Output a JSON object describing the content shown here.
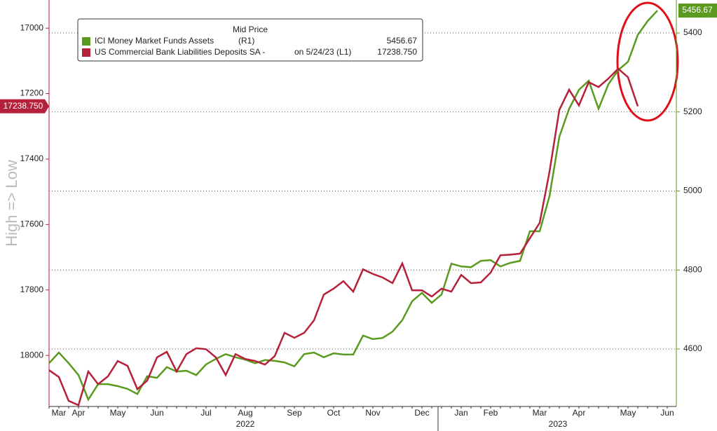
{
  "chart_data": {
    "type": "line",
    "y_label": "High => Low",
    "legend_title": "Mid Price",
    "categories": [
      null,
      "Mar",
      null,
      "Apr",
      null,
      null,
      null,
      "May",
      null,
      null,
      null,
      "Jun",
      null,
      null,
      null,
      null,
      "Jul",
      null,
      null,
      null,
      "Aug",
      null,
      null,
      null,
      null,
      "Sep",
      null,
      null,
      null,
      "Oct",
      null,
      null,
      null,
      "Nov",
      null,
      null,
      null,
      null,
      "Dec",
      null,
      null,
      null,
      "Jan",
      null,
      null,
      "Feb",
      null,
      null,
      null,
      null,
      "Mar",
      null,
      null,
      null,
      "Apr",
      null,
      null,
      null,
      null,
      "May",
      null,
      null,
      null,
      "Jun"
    ],
    "year_labels": [
      "2022",
      "2023"
    ],
    "ylim": [
      16914,
      18156
    ],
    "y_inverted": true,
    "yticks": [
      17000,
      17200,
      17400,
      17600,
      17800,
      18000
    ],
    "y2lim": [
      4454.5,
      5483.4
    ],
    "y2ticks": [
      4600,
      4800,
      5000,
      5200,
      5400
    ],
    "grid": true,
    "series": [
      {
        "name": "ICI Money Market Funds Assets",
        "legend_note": "(R1)",
        "axis": "y2",
        "color": "#5a9a1e",
        "values": [
          4564,
          4591,
          4564,
          4534,
          4472,
          4511,
          4511,
          4506,
          4499,
          4486,
          4531,
          4527,
          4554,
          4543,
          4545,
          4534,
          4561,
          4575,
          4587,
          4579,
          4573,
          4564,
          4572,
          4570,
          4566,
          4556,
          4587,
          4591,
          4579,
          4589,
          4586,
          4586,
          4634,
          4625,
          4628,
          4644,
          4673,
          4721,
          4742,
          4717,
          4738,
          4816,
          4809,
          4807,
          4823,
          4825,
          4809,
          4818,
          4823,
          4898,
          4898,
          4987,
          5137,
          5208,
          5256,
          5279,
          5208,
          5270,
          5306,
          5327,
          5395,
          5430,
          5456.67,
          null
        ]
      },
      {
        "name": "US Commercial Bank Liabilities Deposits SA -",
        "legend_note": "on 5/24/23  (L1)",
        "axis": "y",
        "color": "#b5203a",
        "values": [
          18045,
          18066,
          18139,
          18152,
          18049,
          18088,
          18064,
          18017,
          18032,
          18103,
          18077,
          18006,
          17989,
          18049,
          17996,
          17978,
          17981,
          18006,
          18060,
          17996,
          18011,
          18017,
          18028,
          18002,
          17931,
          17946,
          17931,
          17893,
          17814,
          17796,
          17773,
          17805,
          17737,
          17751,
          17762,
          17779,
          17719,
          17801,
          17801,
          17820,
          17796,
          17805,
          17754,
          17779,
          17777,
          17747,
          17694,
          17692,
          17689,
          17642,
          17595,
          17439,
          17250,
          17188,
          17236,
          17165,
          17180,
          17154,
          17124,
          17150,
          17238.75,
          null,
          null,
          null
        ],
        "value_labels": [
          null,
          null,
          null,
          null,
          null,
          null,
          null,
          null,
          null,
          null,
          null,
          null,
          null,
          null,
          null,
          null,
          null,
          null,
          null,
          null,
          null,
          null,
          null,
          null,
          null,
          null,
          null,
          null,
          null,
          null,
          null,
          null,
          null,
          null,
          null,
          null,
          null,
          null,
          null,
          null,
          null,
          null,
          null,
          null,
          null,
          null,
          null,
          null,
          null,
          null,
          null,
          null,
          null,
          null,
          null,
          null,
          null,
          null,
          null,
          null,
          "17238.750",
          null,
          null,
          null
        ]
      }
    ]
  }
}
